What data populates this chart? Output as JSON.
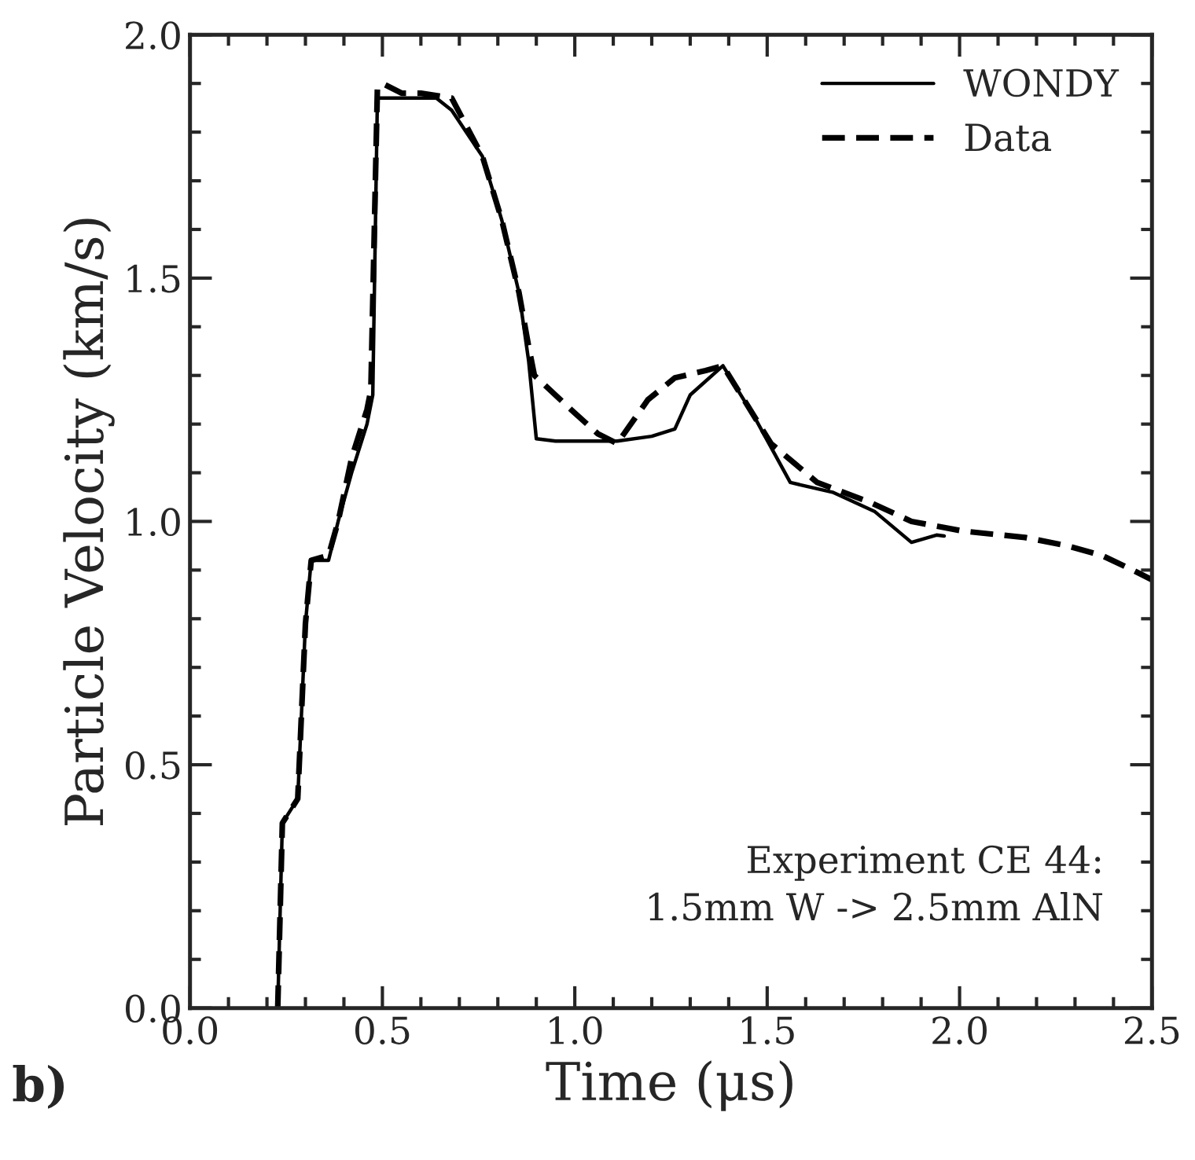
{
  "chart_data": {
    "type": "line",
    "xlabel": "Time (μs)",
    "ylabel": "Particle Velocity (km/s)",
    "xlim": [
      0.0,
      2.5
    ],
    "ylim": [
      0.0,
      2.0
    ],
    "xticks": [
      {
        "value": 0.0,
        "label": "0.0"
      },
      0.5,
      {
        "value": 1.0,
        "label": "1.0"
      },
      1.5,
      {
        "value": 2.0,
        "label": "2.0"
      },
      2.5
    ],
    "yticks": [
      {
        "value": 0.0,
        "label": "0.0"
      },
      0.5,
      {
        "value": 1.0,
        "label": "1.0"
      },
      1.5,
      {
        "value": 2.0,
        "label": "2.0"
      }
    ],
    "grid": false,
    "legend": "top right",
    "annotations": [
      "Experiment CE 44:\n   1.5mm W -> 2.5mm AlN",
      "b)"
    ],
    "series": [
      {
        "name": "WONDY",
        "color": "#000000",
        "line_style": "solid",
        "x": [
          0.228,
          0.24,
          0.28,
          0.3,
          0.315,
          0.36,
          0.385,
          0.42,
          0.46,
          0.475,
          0.487,
          0.5,
          0.55,
          0.64,
          0.68,
          0.76,
          0.81,
          0.855,
          0.88,
          0.9,
          0.95,
          1.11,
          1.2,
          1.26,
          1.3,
          1.385,
          1.47,
          1.56,
          1.67,
          1.78,
          1.875,
          1.94,
          1.96
        ],
        "values": [
          0.0,
          0.38,
          0.43,
          0.79,
          0.92,
          0.92,
          1.0,
          1.1,
          1.2,
          1.26,
          1.87,
          1.87,
          1.87,
          1.87,
          1.845,
          1.75,
          1.62,
          1.47,
          1.33,
          1.17,
          1.165,
          1.165,
          1.175,
          1.19,
          1.26,
          1.32,
          1.21,
          1.08,
          1.06,
          1.02,
          0.957,
          0.972,
          0.97
        ]
      },
      {
        "name": "Data",
        "color": "#000000",
        "line_style": "dashed",
        "x": [
          0.228,
          0.24,
          0.28,
          0.3,
          0.315,
          0.36,
          0.385,
          0.42,
          0.46,
          0.47,
          0.487,
          0.5,
          0.55,
          0.6,
          0.68,
          0.76,
          0.81,
          0.855,
          0.88,
          0.895,
          0.99,
          1.06,
          1.11,
          1.19,
          1.26,
          1.34,
          1.385,
          1.51,
          1.63,
          1.765,
          1.875,
          2.01,
          2.17,
          2.28,
          2.37,
          2.45,
          2.5
        ],
        "values": [
          0.0,
          0.38,
          0.43,
          0.79,
          0.92,
          0.93,
          1.0,
          1.13,
          1.23,
          1.27,
          1.89,
          1.9,
          1.88,
          1.88,
          1.87,
          1.75,
          1.62,
          1.47,
          1.36,
          1.3,
          1.23,
          1.18,
          1.16,
          1.25,
          1.295,
          1.31,
          1.32,
          1.16,
          1.08,
          1.04,
          1.0,
          0.98,
          0.967,
          0.95,
          0.93,
          0.9,
          0.88
        ]
      }
    ]
  }
}
